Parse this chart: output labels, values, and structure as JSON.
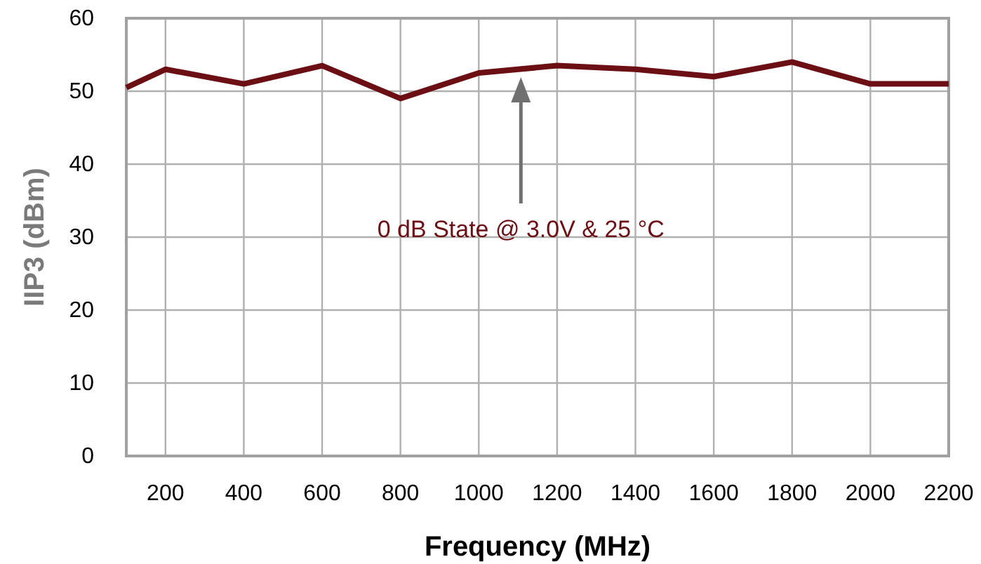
{
  "chart_data": {
    "type": "line",
    "xlabel": "Frequency (MHz)",
    "ylabel": "IIP3 (dBm)",
    "x": [
      100,
      200,
      400,
      600,
      800,
      1000,
      1200,
      1400,
      1600,
      1800,
      2000,
      2200
    ],
    "series": [
      {
        "color": "#6b0f14",
        "values": [
          50.5,
          53,
          51,
          53.5,
          49,
          52.5,
          53.5,
          53,
          52,
          54,
          51,
          51
        ]
      }
    ],
    "xlim": [
      100,
      2200
    ],
    "xticks": [
      200,
      400,
      600,
      800,
      1000,
      1200,
      1400,
      1600,
      1800,
      2000,
      2200
    ],
    "ylim": [
      0,
      60
    ],
    "yticks": [
      0,
      10,
      20,
      30,
      40,
      50,
      60
    ],
    "grid": true,
    "marker": "none",
    "line_style": "solid",
    "annotations": [
      "0 dB State @ 3.0V & 25 °C"
    ]
  }
}
